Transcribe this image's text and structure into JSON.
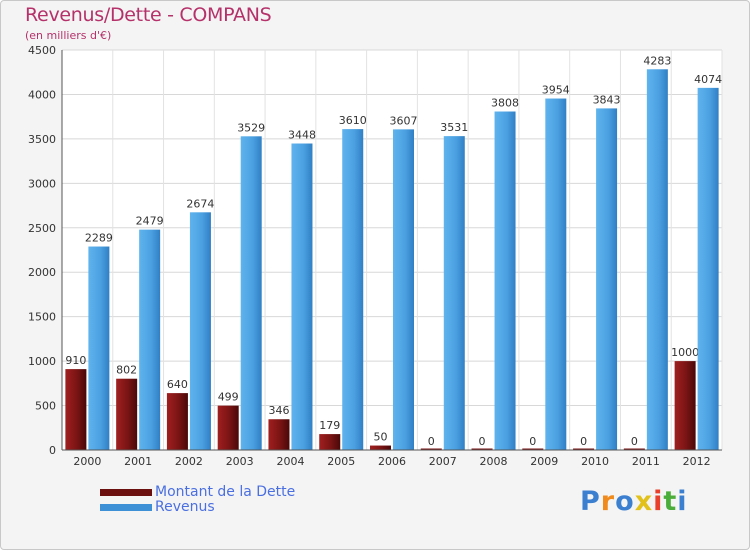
{
  "header": {
    "title": "Revenus/Dette - COMPANS",
    "subtitle": "(en milliers d'€)"
  },
  "chart_data": {
    "type": "bar",
    "categories": [
      "2000",
      "2001",
      "2002",
      "2003",
      "2004",
      "2005",
      "2006",
      "2007",
      "2008",
      "2009",
      "2010",
      "2011",
      "2012"
    ],
    "series": [
      {
        "name": "Montant de la Dette",
        "color": "#7a1414",
        "values": [
          910,
          802,
          640,
          499,
          346,
          179,
          50,
          0,
          0,
          0,
          0,
          0,
          1000
        ]
      },
      {
        "name": "Revenus",
        "color": "#4a9fe0",
        "values": [
          2289,
          2479,
          2674,
          3529,
          3448,
          3610,
          3607,
          3531,
          3808,
          3954,
          3843,
          4283,
          4074
        ]
      }
    ],
    "yticks": [
      0,
      500,
      1000,
      1500,
      2000,
      2500,
      3000,
      3500,
      4000,
      4500
    ],
    "ylim": [
      0,
      4500
    ],
    "grid": true,
    "legend": "bottom-left"
  },
  "legend": {
    "items": [
      {
        "label": "Montant de la Dette",
        "color": "#6b0f0f"
      },
      {
        "label": "Revenus",
        "color": "#3d8fd6"
      }
    ]
  },
  "logo": {
    "letters": [
      "P",
      "r",
      "o",
      "x",
      "i",
      "t",
      "i"
    ],
    "colors": [
      "#3b7fd0",
      "#f08a1c",
      "#3b7fd0",
      "#e2c21a",
      "#e8402a",
      "#4cae3a",
      "#3b7fd0"
    ]
  }
}
